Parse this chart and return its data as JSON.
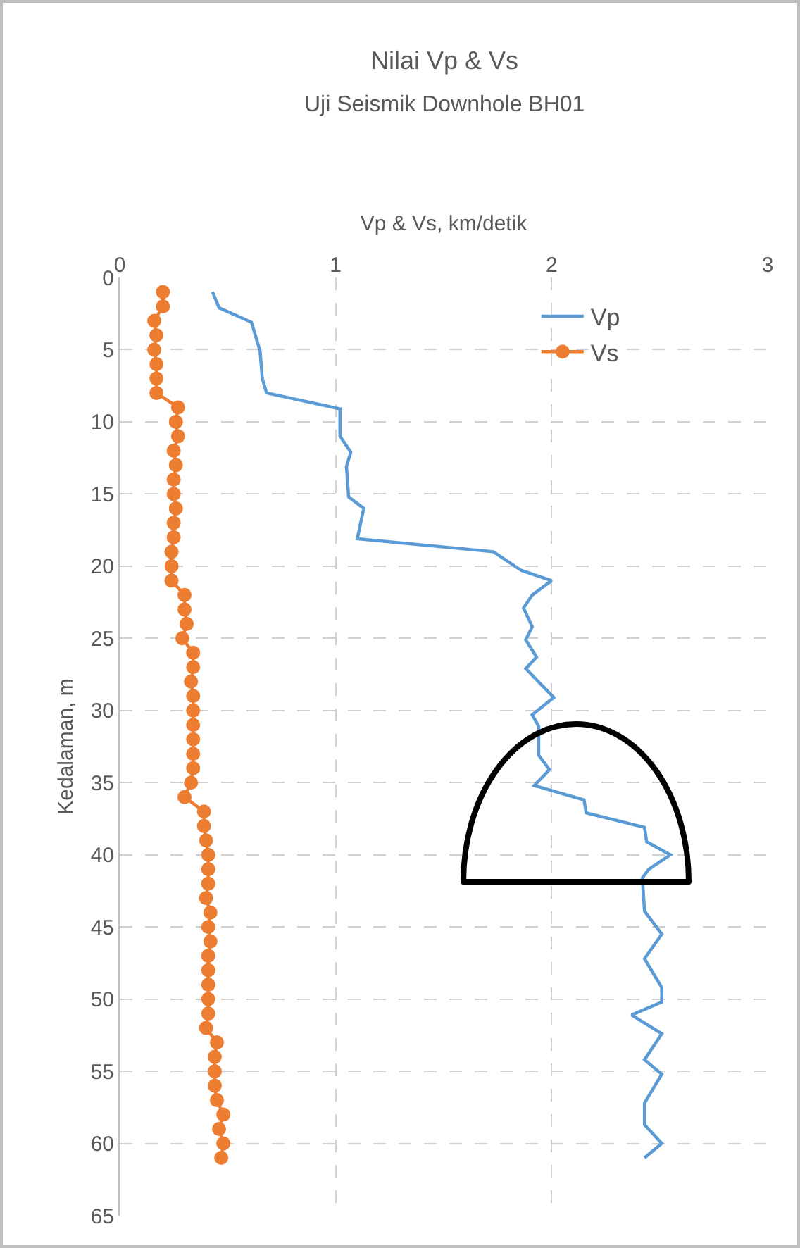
{
  "chart_data": {
    "type": "line",
    "title": "Nilai Vp & Vs",
    "subtitle": "Uji Seismik Downhole BH01",
    "xlabel": "Vp & Vs, km/detik",
    "ylabel": "Kedalaman, m",
    "orientation": "horizontal",
    "xlim": [
      0,
      3
    ],
    "xticks": [
      0,
      1,
      2,
      3
    ],
    "ylim": [
      65,
      0
    ],
    "yticks": [
      0,
      5,
      10,
      15,
      20,
      25,
      30,
      35,
      40,
      45,
      50,
      55,
      60,
      65
    ],
    "grid": true,
    "legend": "top right",
    "line_style": "solid",
    "series": [
      {
        "name": "Vp",
        "color": "#5b9bd5",
        "marker": "none",
        "x": [
          1.0,
          2.1,
          3.1,
          5.1,
          7,
          8,
          9.1,
          11,
          12.1,
          13.1,
          15.2,
          16,
          18.1,
          19,
          20.3,
          21,
          22,
          22.9,
          24.2,
          25.1,
          26.3,
          27.1,
          29.1,
          30.3,
          31.1,
          33.1,
          34.1,
          35.2,
          36.2,
          37.1,
          38.1,
          39.1,
          40,
          41,
          41.6,
          43.9,
          45.5,
          47.2,
          49.2,
          50.2,
          51.1,
          52.4,
          54.2,
          55.2,
          57.2,
          58.7,
          60,
          61
        ],
        "values": [
          0.43,
          0.46,
          0.61,
          0.65,
          0.66,
          0.68,
          1.02,
          1.02,
          1.07,
          1.05,
          1.06,
          1.13,
          1.1,
          1.73,
          1.86,
          2.0,
          1.91,
          1.87,
          1.91,
          1.88,
          1.93,
          1.88,
          2.01,
          1.91,
          1.94,
          1.94,
          1.99,
          1.92,
          2.15,
          2.16,
          2.43,
          2.44,
          2.55,
          2.45,
          2.42,
          2.43,
          2.51,
          2.43,
          2.51,
          2.51,
          2.37,
          2.51,
          2.43,
          2.51,
          2.43,
          2.43,
          2.51,
          2.43
        ]
      },
      {
        "name": "Vs",
        "color": "#ed7d31",
        "marker": "circle",
        "x": [
          1,
          2,
          3,
          4,
          5,
          6,
          7,
          8,
          9,
          10,
          11,
          12,
          13,
          14,
          15,
          16,
          17,
          18,
          19,
          20,
          21,
          22,
          23,
          24,
          25,
          26,
          27,
          28,
          29,
          30,
          31,
          32,
          33,
          34,
          35,
          36,
          37,
          38,
          39,
          40,
          41,
          42,
          43,
          44,
          45,
          46,
          47,
          48,
          49,
          50,
          51,
          52,
          53,
          54,
          55,
          56,
          57,
          58,
          59,
          60,
          61
        ],
        "values": [
          0.2,
          0.2,
          0.16,
          0.17,
          0.16,
          0.17,
          0.17,
          0.17,
          0.27,
          0.26,
          0.27,
          0.25,
          0.26,
          0.25,
          0.25,
          0.26,
          0.25,
          0.25,
          0.24,
          0.24,
          0.24,
          0.3,
          0.3,
          0.31,
          0.29,
          0.34,
          0.34,
          0.33,
          0.34,
          0.34,
          0.34,
          0.34,
          0.34,
          0.34,
          0.33,
          0.3,
          0.39,
          0.39,
          0.4,
          0.41,
          0.41,
          0.41,
          0.4,
          0.42,
          0.41,
          0.42,
          0.41,
          0.41,
          0.41,
          0.41,
          0.41,
          0.4,
          0.45,
          0.44,
          0.44,
          0.44,
          0.45,
          0.48,
          0.46,
          0.48,
          0.47
        ]
      }
    ]
  }
}
